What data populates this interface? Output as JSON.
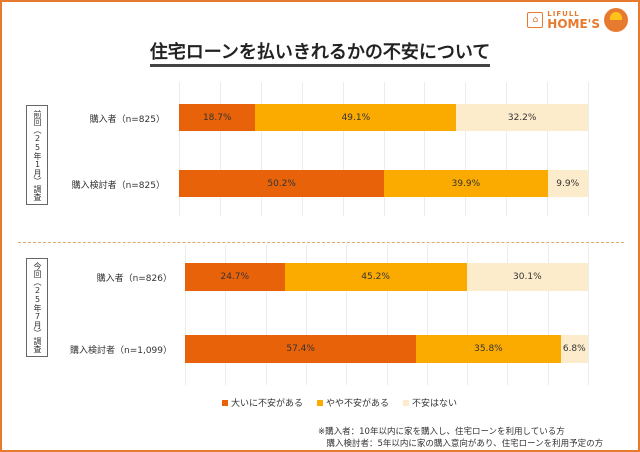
{
  "title": "住宅ローンを払いきれるかの不安について",
  "logo": {
    "line1": "LIFULL",
    "line2": "HOME'S"
  },
  "colors": {
    "very_anxious": "#e8620a",
    "somewhat_anxious": "#fbab00",
    "not_anxious": "#fdeccc",
    "frame": "#e67a2e"
  },
  "chart_data": [
    {
      "type": "bar",
      "stacked": true,
      "orientation": "horizontal",
      "group_label": "前回（25年1月）調査",
      "categories": [
        "購入者（n=825）",
        "購入検討者（n=825）"
      ],
      "series": [
        {
          "name": "大いに不安がある",
          "values": [
            18.7,
            50.2
          ],
          "labels": [
            "18.7%",
            "50.2%"
          ]
        },
        {
          "name": "やや不安がある",
          "values": [
            49.1,
            39.9
          ],
          "labels": [
            "49.1%",
            "39.9%"
          ]
        },
        {
          "name": "不安はない",
          "values": [
            32.2,
            9.9
          ],
          "labels": [
            "32.2%",
            "9.9%"
          ]
        }
      ],
      "xlim": [
        0,
        100
      ],
      "grid": true
    },
    {
      "type": "bar",
      "stacked": true,
      "orientation": "horizontal",
      "group_label": "今回（25年7月）調査",
      "categories": [
        "購入者（n=826）",
        "購入検討者（n=1,099）"
      ],
      "series": [
        {
          "name": "大いに不安がある",
          "values": [
            24.7,
            57.4
          ],
          "labels": [
            "24.7%",
            "57.4%"
          ]
        },
        {
          "name": "やや不安がある",
          "values": [
            45.2,
            35.8
          ],
          "labels": [
            "45.2%",
            "35.8%"
          ]
        },
        {
          "name": "不安はない",
          "values": [
            30.1,
            6.8
          ],
          "labels": [
            "30.1%",
            "6.8%"
          ]
        }
      ],
      "xlim": [
        0,
        100
      ],
      "grid": true
    }
  ],
  "legend": [
    "大いに不安がある",
    "やや不安がある",
    "不安はない"
  ],
  "notes": [
    "※購入者：10年以内に家を購入し、住宅ローンを利用している方",
    "　購入検討者：5年以内に家の購入意向があり、住宅ローンを利用予定の方"
  ]
}
